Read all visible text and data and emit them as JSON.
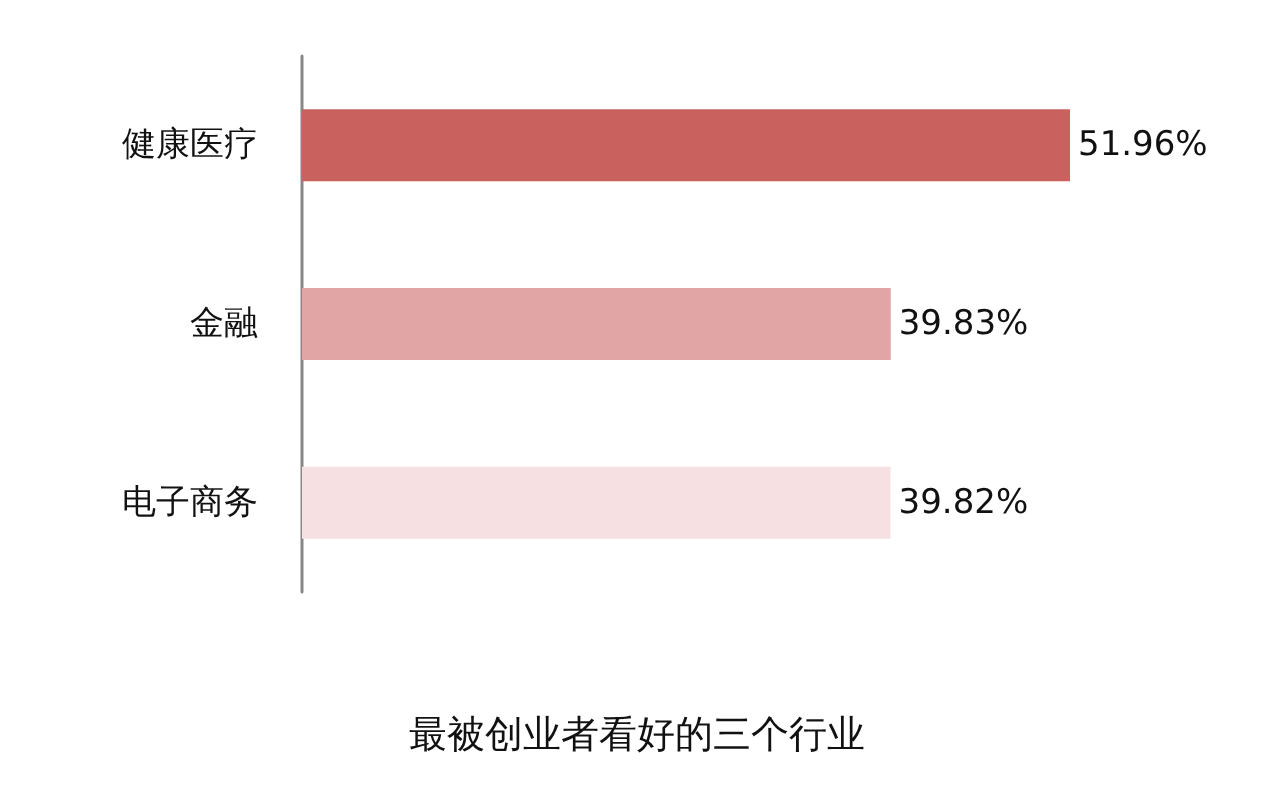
{
  "chart_data": {
    "type": "bar",
    "orientation": "horizontal",
    "title": "最被创业者看好的三个行业",
    "categories": [
      "健康医疗",
      "金融",
      "电子商务"
    ],
    "values": [
      51.96,
      39.83,
      39.82
    ],
    "value_labels": [
      "51.96%",
      "39.83%",
      "39.82%"
    ],
    "colors": [
      "#c9625f",
      "#e2a5a6",
      "#f6e0e2"
    ]
  }
}
